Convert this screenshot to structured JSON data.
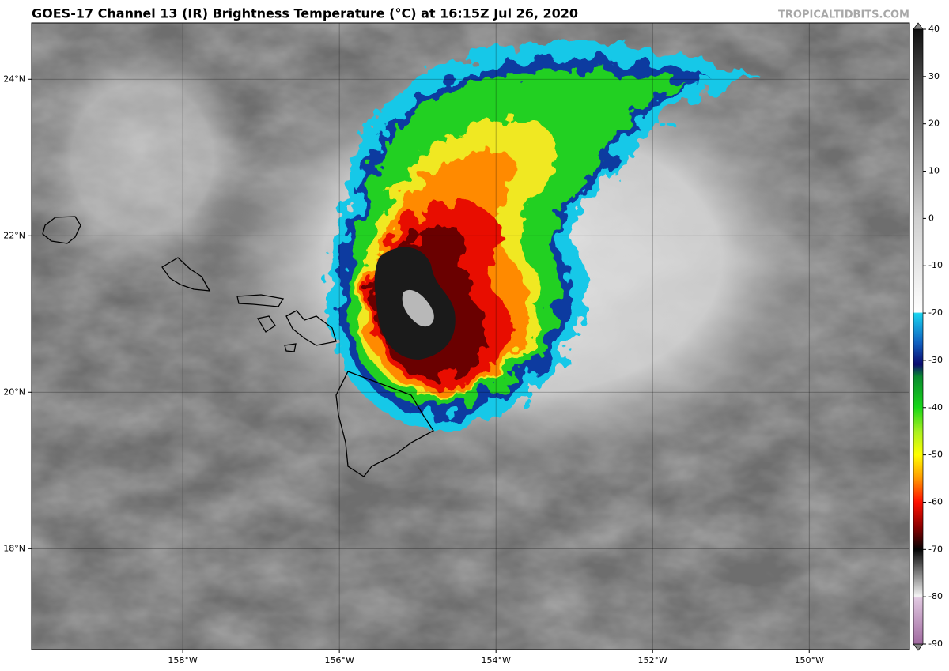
{
  "header": {
    "title": "GOES-17 Channel 13 (IR) Brightness Temperature (°C) at 16:15Z Jul 26, 2020",
    "watermark": "TROPICALTIDBITS.COM"
  },
  "map": {
    "xlim": [
      -159.93,
      -148.72
    ],
    "ylim": [
      16.71,
      24.72
    ],
    "xticks": [
      {
        "value": -158,
        "label": "158°W"
      },
      {
        "value": -156,
        "label": "156°W"
      },
      {
        "value": -154,
        "label": "154°W"
      },
      {
        "value": -152,
        "label": "152°W"
      },
      {
        "value": -150,
        "label": "150°W"
      }
    ],
    "yticks": [
      {
        "value": 24,
        "label": "24°N"
      },
      {
        "value": 22,
        "label": "22°N"
      },
      {
        "value": 20,
        "label": "20°N"
      },
      {
        "value": 18,
        "label": "18°N"
      }
    ],
    "grid": true
  },
  "colorbar": {
    "lim": [
      -90,
      40
    ],
    "ticks": [
      40,
      30,
      20,
      10,
      0,
      -10,
      -20,
      -30,
      -40,
      -50,
      -60,
      -70,
      -80,
      -90
    ]
  }
}
